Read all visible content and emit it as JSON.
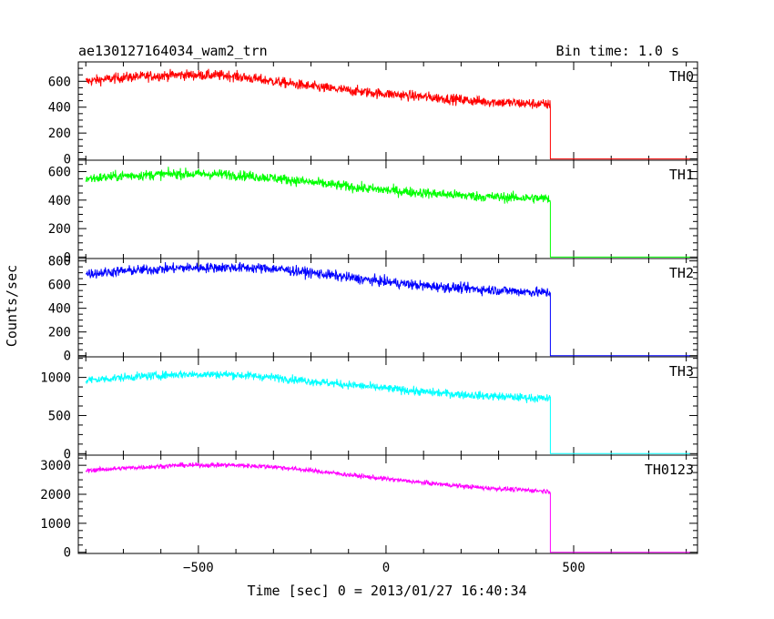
{
  "chart_data": {
    "type": "line",
    "title": "ae130127164034_wam2_trn",
    "bin_time_label": "Bin time: 1.0 s",
    "xlabel": "Time [sec] 0 = 2013/01/27 16:40:34",
    "ylabel": "Counts/sec",
    "xlim": [
      -820,
      830
    ],
    "x_ticks": [
      -500,
      0,
      500
    ],
    "x_tick_labels": [
      "−500",
      "0",
      "500"
    ],
    "drop_time": 438,
    "data_end": 810,
    "grid": false,
    "panels": [
      {
        "name": "TH0",
        "color": "#ff0000",
        "ylim": [
          -10,
          750
        ],
        "y_ticks": [
          0,
          200,
          400,
          600
        ],
        "y_tick_labels": [
          "0",
          "200",
          "400",
          "600"
        ],
        "noise": 28,
        "profile": [
          [
            -800,
            600
          ],
          [
            -700,
            630
          ],
          [
            -550,
            650
          ],
          [
            -420,
            645
          ],
          [
            -300,
            600
          ],
          [
            -200,
            560
          ],
          [
            -50,
            515
          ],
          [
            100,
            480
          ],
          [
            250,
            445
          ],
          [
            438,
            420
          ]
        ]
      },
      {
        "name": "TH1",
        "color": "#00ff00",
        "ylim": [
          -10,
          680
        ],
        "y_ticks": [
          0,
          200,
          400,
          600
        ],
        "y_tick_labels": [
          "0",
          "200",
          "400",
          "600"
        ],
        "noise": 25,
        "profile": [
          [
            -800,
            550
          ],
          [
            -700,
            570
          ],
          [
            -550,
            585
          ],
          [
            -420,
            580
          ],
          [
            -300,
            555
          ],
          [
            -200,
            525
          ],
          [
            -50,
            480
          ],
          [
            100,
            450
          ],
          [
            250,
            425
          ],
          [
            438,
            410
          ]
        ]
      },
      {
        "name": "TH2",
        "color": "#0000ff",
        "ylim": [
          -10,
          820
        ],
        "y_ticks": [
          0,
          200,
          400,
          600,
          800
        ],
        "y_tick_labels": [
          "0",
          "200",
          "400",
          "600",
          "800"
        ],
        "noise": 30,
        "profile": [
          [
            -800,
            690
          ],
          [
            -700,
            715
          ],
          [
            -550,
            740
          ],
          [
            -420,
            745
          ],
          [
            -300,
            735
          ],
          [
            -200,
            700
          ],
          [
            -50,
            640
          ],
          [
            100,
            590
          ],
          [
            250,
            560
          ],
          [
            438,
            530
          ]
        ]
      },
      {
        "name": "TH3",
        "color": "#00ffff",
        "ylim": [
          -20,
          1270
        ],
        "y_ticks": [
          0,
          500,
          1000
        ],
        "y_tick_labels": [
          "0",
          "500",
          "1000"
        ],
        "noise": 38,
        "profile": [
          [
            -800,
            960
          ],
          [
            -700,
            1000
          ],
          [
            -550,
            1040
          ],
          [
            -420,
            1040
          ],
          [
            -300,
            1000
          ],
          [
            -200,
            950
          ],
          [
            -50,
            880
          ],
          [
            100,
            810
          ],
          [
            250,
            760
          ],
          [
            438,
            720
          ]
        ]
      },
      {
        "name": "TH0123",
        "color": "#ff00ff",
        "ylim": [
          -40,
          3350
        ],
        "y_ticks": [
          0,
          1000,
          2000,
          3000
        ],
        "y_tick_labels": [
          "0",
          "1000",
          "2000",
          "3000"
        ],
        "noise": 55,
        "profile": [
          [
            -800,
            2820
          ],
          [
            -700,
            2900
          ],
          [
            -550,
            3000
          ],
          [
            -420,
            3010
          ],
          [
            -300,
            2950
          ],
          [
            -200,
            2820
          ],
          [
            -50,
            2600
          ],
          [
            100,
            2400
          ],
          [
            250,
            2230
          ],
          [
            438,
            2100
          ]
        ]
      }
    ]
  }
}
